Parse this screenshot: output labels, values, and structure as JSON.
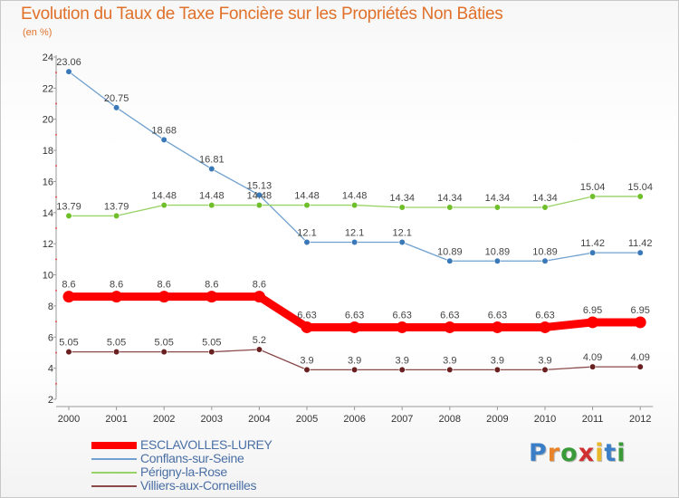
{
  "title": "Evolution du Taux de Taxe Foncière sur les Propriétés Non Bâties",
  "subtitle": "(en %)",
  "brand": {
    "text": "Proxiti",
    "letters": [
      {
        "ch": "P",
        "color": "#3a7ec8"
      },
      {
        "ch": "r",
        "color": "#e8832a"
      },
      {
        "ch": "o",
        "color": "#3a9a3a"
      },
      {
        "ch": "x",
        "color": "#d03030"
      },
      {
        "ch": "i",
        "color": "#e8b82a"
      },
      {
        "ch": "t",
        "color": "#3a7ec8"
      },
      {
        "ch": "i",
        "color": "#3a9a3a"
      }
    ]
  },
  "chart_data": {
    "type": "line",
    "title": "Evolution du Taux de Taxe Foncière sur les Propriétés Non Bâties",
    "ylabel": "(en %)",
    "xlabel": "",
    "categories": [
      "2000",
      "2001",
      "2002",
      "2003",
      "2004",
      "2005",
      "2006",
      "2007",
      "2008",
      "2009",
      "2010",
      "2011",
      "2012"
    ],
    "ylim": [
      2,
      24
    ],
    "yticks": [
      2,
      4,
      6,
      8,
      10,
      12,
      14,
      16,
      18,
      20,
      22,
      24
    ],
    "grid": false,
    "legend_position": "bottom-left",
    "series": [
      {
        "name": "ESCLAVOLLES-LUREY",
        "color": "#ff0000",
        "highlight": true,
        "values": [
          8.6,
          8.6,
          8.6,
          8.6,
          8.6,
          6.63,
          6.63,
          6.63,
          6.63,
          6.63,
          6.63,
          6.95,
          6.95
        ],
        "labels": [
          "8.6",
          "8.6",
          "8.6",
          "8.6",
          "8.6",
          "6.63",
          "6.63",
          "6.63",
          "6.63",
          "6.63",
          "6.63",
          "6.95",
          "6.95"
        ]
      },
      {
        "name": "Conflans-sur-Seine",
        "color": "#6fa0cf",
        "marker_color": "#3a78b8",
        "highlight": false,
        "values": [
          23.06,
          20.75,
          18.68,
          16.81,
          15.13,
          12.1,
          12.1,
          12.1,
          10.89,
          10.89,
          10.89,
          11.42,
          11.42
        ],
        "labels": [
          "23.06",
          "20.75",
          "18.68",
          "16.81",
          "15.13",
          "12.1",
          "12.1",
          "12.1",
          "10.89",
          "10.89",
          "10.89",
          "11.42",
          "11.42"
        ]
      },
      {
        "name": "Périgny-la-Rose",
        "color": "#99d266",
        "marker_color": "#6fbf2a",
        "highlight": false,
        "values": [
          13.79,
          13.79,
          14.48,
          14.48,
          14.48,
          14.48,
          14.48,
          14.34,
          14.34,
          14.34,
          14.34,
          15.04,
          15.04
        ],
        "labels": [
          "13.79",
          "13.79",
          "14.48",
          "14.48",
          "14.48",
          "14.48",
          "14.48",
          "14.34",
          "14.34",
          "14.34",
          "14.34",
          "15.04",
          "15.04"
        ]
      },
      {
        "name": "Villiers-aux-Corneilles",
        "color": "#8a4a4a",
        "marker_color": "#6a2020",
        "highlight": false,
        "values": [
          5.05,
          5.05,
          5.05,
          5.05,
          5.2,
          3.9,
          3.9,
          3.9,
          3.9,
          3.9,
          3.9,
          4.09,
          4.09
        ],
        "labels": [
          "5.05",
          "5.05",
          "5.05",
          "5.05",
          "5.2",
          "3.9",
          "3.9",
          "3.9",
          "3.9",
          "3.9",
          "3.9",
          "4.09",
          "4.09"
        ]
      }
    ]
  }
}
